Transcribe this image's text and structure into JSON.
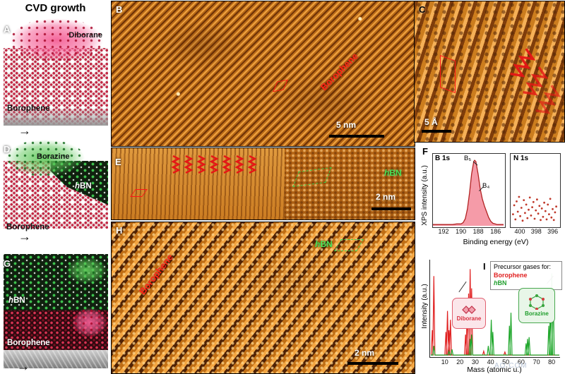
{
  "title": "CVD growth",
  "watermark": "AO.COM",
  "icons": {
    "arrow_right": "→"
  },
  "panels": {
    "A": {
      "label": "A",
      "gas": "Diborane",
      "material": "Borophene"
    },
    "B": {
      "label": "B",
      "annotation": "Borophene",
      "scalebar": "5 nm"
    },
    "C": {
      "label": "C",
      "scalebar": "5 Å"
    },
    "D": {
      "label": "D",
      "gas": "Borazine",
      "overlayer": "hBN",
      "material": "Borophene"
    },
    "E": {
      "label": "E",
      "overlayer": "hBN",
      "scalebar": "2 nm"
    },
    "F": {
      "label": "F",
      "left_title": "B 1s",
      "right_title": "N 1s",
      "peak_main": "B₅",
      "peak_shoulder": "B₄",
      "ylabel": "XPS intensity (a.u.)",
      "xlabel": "Binding energy (eV)"
    },
    "G": {
      "label": "G",
      "overlayer": "hBN",
      "material": "Borophene"
    },
    "H": {
      "label": "H",
      "annotation": "Borophene",
      "overlayer": "hBN",
      "scalebar": "2 nm"
    },
    "I": {
      "label": "I",
      "legend_title": "Precursor gases for:",
      "legend_item1": "Borophene",
      "legend_item2": "hBN",
      "inset1": "Diborane",
      "inset2": "Borazine",
      "ylabel": "Intensity (a.u.)",
      "xlabel": "Mass (atomic u.)"
    }
  },
  "chart_data": [
    {
      "id": "xps_b1s",
      "type": "area",
      "title": "B 1s",
      "xlabel": "Binding energy (eV)",
      "ylabel": "XPS intensity (a.u.)",
      "xlim": [
        193.3,
        185.0
      ],
      "ylim": [
        0,
        1.12
      ],
      "x_ticks": [
        192,
        190,
        188,
        186
      ],
      "line_color": "#b22222",
      "fill_color": "#f59ba8",
      "components": [
        {
          "label": "B₅",
          "center": 188.4
        },
        {
          "label": "B₄",
          "center": 187.2
        }
      ],
      "points": [
        [
          193.3,
          0.02
        ],
        [
          192.5,
          0.02
        ],
        [
          192,
          0.02
        ],
        [
          191.5,
          0.02
        ],
        [
          191,
          0.02
        ],
        [
          190.5,
          0.03
        ],
        [
          190,
          0.03
        ],
        [
          189.75,
          0.05
        ],
        [
          189.5,
          0.11
        ],
        [
          189.25,
          0.26
        ],
        [
          189,
          0.51
        ],
        [
          188.75,
          0.81
        ],
        [
          188.5,
          1.0
        ],
        [
          188.4,
          1.02
        ],
        [
          188.25,
          1.0
        ],
        [
          188,
          0.81
        ],
        [
          187.75,
          0.58
        ],
        [
          187.5,
          0.42
        ],
        [
          187.25,
          0.31
        ],
        [
          187,
          0.22
        ],
        [
          186.75,
          0.13
        ],
        [
          186.5,
          0.07
        ],
        [
          186.25,
          0.04
        ],
        [
          186,
          0.03
        ],
        [
          185.75,
          0.02
        ],
        [
          185.5,
          0.02
        ],
        [
          185,
          0.02
        ]
      ]
    },
    {
      "id": "xps_n1s",
      "type": "scatter",
      "title": "N 1s",
      "xlim": [
        401.2,
        395.2
      ],
      "ylim": [
        0,
        1.12
      ],
      "x_ticks": [
        400,
        398,
        396
      ],
      "point_color": "#c0392b",
      "points": [
        [
          400.9,
          0.18
        ],
        [
          400.75,
          0.32
        ],
        [
          400.6,
          0.1
        ],
        [
          400.45,
          0.38
        ],
        [
          400.3,
          0.22
        ],
        [
          400.15,
          0.45
        ],
        [
          400.0,
          0.15
        ],
        [
          399.85,
          0.28
        ],
        [
          399.7,
          0.08
        ],
        [
          399.55,
          0.4
        ],
        [
          399.4,
          0.2
        ],
        [
          399.25,
          0.33
        ],
        [
          399.1,
          0.12
        ],
        [
          398.95,
          0.25
        ],
        [
          398.8,
          0.44
        ],
        [
          398.65,
          0.16
        ],
        [
          398.5,
          0.29
        ],
        [
          398.35,
          0.37
        ],
        [
          398.2,
          0.11
        ],
        [
          398.05,
          0.24
        ],
        [
          397.9,
          0.41
        ],
        [
          397.75,
          0.19
        ],
        [
          397.6,
          0.31
        ],
        [
          397.45,
          0.09
        ],
        [
          397.3,
          0.27
        ],
        [
          397.15,
          0.14
        ],
        [
          397.0,
          0.36
        ],
        [
          396.85,
          0.23
        ],
        [
          396.7,
          0.1
        ],
        [
          396.55,
          0.33
        ],
        [
          396.4,
          0.18
        ],
        [
          396.25,
          0.42
        ],
        [
          396.1,
          0.13
        ],
        [
          395.95,
          0.26
        ],
        [
          395.8,
          0.09
        ],
        [
          395.65,
          0.21
        ],
        [
          395.5,
          0.3
        ]
      ]
    },
    {
      "id": "mass_spec",
      "type": "line",
      "xlabel": "Mass (atomic u.)",
      "ylabel": "Intensity (a.u.)",
      "xlim": [
        0,
        85
      ],
      "ylim": [
        0,
        1.1
      ],
      "x_ticks": [
        10,
        20,
        30,
        40,
        50,
        60,
        70,
        80
      ],
      "series": [
        {
          "name": "Borophene",
          "color": "#e02020",
          "peaks": [
            [
              1,
              0.3
            ],
            [
              2,
              0.92
            ],
            [
              10,
              0.28
            ],
            [
              11,
              0.52
            ],
            [
              12,
              0.3
            ],
            [
              13,
              0.42
            ],
            [
              23,
              0.25
            ],
            [
              24,
              0.55
            ],
            [
              25,
              0.72
            ],
            [
              26,
              1.0
            ],
            [
              27,
              0.78
            ],
            [
              35,
              0.06
            ],
            [
              49,
              0.05
            ]
          ]
        },
        {
          "name": "hBN",
          "color": "#22a82e",
          "peaks": [
            [
              2,
              0.12
            ],
            [
              12,
              0.06
            ],
            [
              14,
              0.08
            ],
            [
              26,
              0.2
            ],
            [
              27,
              0.25
            ],
            [
              38,
              0.12
            ],
            [
              40,
              0.42
            ],
            [
              41,
              0.28
            ],
            [
              52,
              0.35
            ],
            [
              53,
              0.5
            ],
            [
              63,
              0.15
            ],
            [
              64,
              0.2
            ],
            [
              65,
              0.22
            ],
            [
              78,
              0.35
            ],
            [
              79,
              0.55
            ],
            [
              80,
              0.95
            ],
            [
              81,
              0.7
            ]
          ]
        }
      ]
    }
  ]
}
